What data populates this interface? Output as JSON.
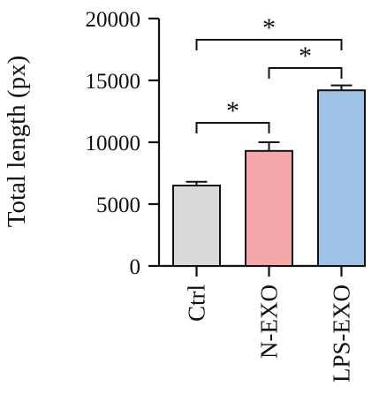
{
  "chart_data": {
    "type": "bar",
    "categories": [
      "Ctrl",
      "N-EXO",
      "LPS-EXO"
    ],
    "values": [
      6500,
      9300,
      14200
    ],
    "errors": [
      300,
      700,
      400
    ],
    "ylabel": "Total length (px)",
    "ylim": [
      0,
      20000
    ],
    "yticks": [
      0,
      5000,
      10000,
      15000,
      20000
    ],
    "grid": false,
    "colors": [
      "#d9d9d9",
      "#f4a6a8",
      "#9fc3e7"
    ],
    "significance": [
      {
        "from": "Ctrl",
        "to": "N-EXO",
        "label": "*"
      },
      {
        "from": "N-EXO",
        "to": "LPS-EXO",
        "label": "*"
      },
      {
        "from": "Ctrl",
        "to": "LPS-EXO",
        "label": "*"
      }
    ]
  }
}
